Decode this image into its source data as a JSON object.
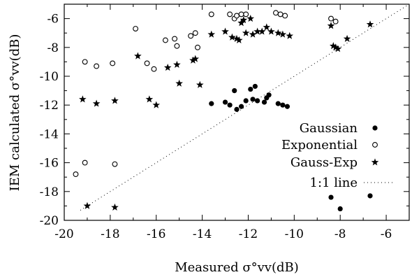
{
  "chart_data": {
    "type": "scatter",
    "title": "",
    "xlabel": "Measured σ°vv(dB)",
    "ylabel": "IEM calculated σ°vv(dB)",
    "xlim": [
      -20,
      -5
    ],
    "ylim": [
      -20,
      -5
    ],
    "xticks": [
      -20,
      -18,
      -16,
      -14,
      -12,
      -10,
      -8,
      -6
    ],
    "yticks": [
      -20,
      -18,
      -16,
      -14,
      -12,
      -10,
      -8,
      -6
    ],
    "grid": false,
    "legend_position": "lower-right",
    "series": [
      {
        "name": "Gaussian",
        "marker": "filled-circle",
        "points": [
          [
            -13.6,
            -11.9
          ],
          [
            -13.0,
            -11.8
          ],
          [
            -12.8,
            -12.0
          ],
          [
            -12.6,
            -11.0
          ],
          [
            -12.5,
            -12.3
          ],
          [
            -12.3,
            -12.1
          ],
          [
            -12.1,
            -11.7
          ],
          [
            -11.9,
            -10.9
          ],
          [
            -11.8,
            -11.6
          ],
          [
            -11.7,
            -10.7
          ],
          [
            -11.6,
            -11.7
          ],
          [
            -11.3,
            -11.8
          ],
          [
            -11.2,
            -11.5
          ],
          [
            -11.1,
            -11.3
          ],
          [
            -10.7,
            -11.9
          ],
          [
            -10.5,
            -12.0
          ],
          [
            -10.3,
            -12.1
          ],
          [
            -8.4,
            -18.4
          ],
          [
            -8.0,
            -19.2
          ],
          [
            -6.7,
            -18.3
          ]
        ]
      },
      {
        "name": "Exponential",
        "marker": "open-circle",
        "points": [
          [
            -19.5,
            -16.8
          ],
          [
            -19.1,
            -16.0
          ],
          [
            -19.1,
            -9.0
          ],
          [
            -18.6,
            -9.3
          ],
          [
            -17.9,
            -9.1
          ],
          [
            -17.8,
            -16.1
          ],
          [
            -16.9,
            -6.7
          ],
          [
            -16.4,
            -9.1
          ],
          [
            -16.1,
            -9.5
          ],
          [
            -15.6,
            -7.5
          ],
          [
            -15.2,
            -7.4
          ],
          [
            -15.1,
            -7.9
          ],
          [
            -14.5,
            -7.2
          ],
          [
            -14.3,
            -7.0
          ],
          [
            -14.2,
            -8.0
          ],
          [
            -13.6,
            -5.7
          ],
          [
            -12.8,
            -5.7
          ],
          [
            -12.6,
            -6.0
          ],
          [
            -12.5,
            -5.8
          ],
          [
            -12.3,
            -5.7
          ],
          [
            -12.1,
            -5.7
          ],
          [
            -10.8,
            -5.6
          ],
          [
            -10.6,
            -5.7
          ],
          [
            -10.4,
            -5.8
          ],
          [
            -8.4,
            -6.0
          ],
          [
            -8.2,
            -6.2
          ]
        ]
      },
      {
        "name": "Gauss-Exp",
        "marker": "star",
        "points": [
          [
            -19.2,
            -11.6
          ],
          [
            -19.0,
            -19.0
          ],
          [
            -18.6,
            -11.9
          ],
          [
            -17.8,
            -11.7
          ],
          [
            -17.8,
            -19.1
          ],
          [
            -16.8,
            -8.6
          ],
          [
            -16.3,
            -11.6
          ],
          [
            -16.0,
            -12.0
          ],
          [
            -15.5,
            -9.4
          ],
          [
            -15.1,
            -9.2
          ],
          [
            -15.0,
            -10.5
          ],
          [
            -14.4,
            -8.9
          ],
          [
            -14.3,
            -8.8
          ],
          [
            -14.1,
            -10.6
          ],
          [
            -13.6,
            -7.1
          ],
          [
            -13.0,
            -6.9
          ],
          [
            -12.7,
            -7.3
          ],
          [
            -12.5,
            -7.4
          ],
          [
            -12.4,
            -7.5
          ],
          [
            -12.3,
            -6.3
          ],
          [
            -12.1,
            -7.0
          ],
          [
            -11.8,
            -7.1
          ],
          [
            -11.6,
            -6.9
          ],
          [
            -11.4,
            -6.9
          ],
          [
            -11.2,
            -6.6
          ],
          [
            -11.0,
            -6.9
          ],
          [
            -10.7,
            -7.0
          ],
          [
            -10.5,
            -7.1
          ],
          [
            -10.2,
            -7.2
          ],
          [
            -8.4,
            -6.5
          ],
          [
            -8.3,
            -7.9
          ],
          [
            -8.2,
            -8.0
          ],
          [
            -8.1,
            -8.1
          ],
          [
            -7.7,
            -7.4
          ],
          [
            -6.7,
            -6.4
          ],
          [
            -12.2,
            -6.1
          ],
          [
            -11.9,
            -6.0
          ]
        ]
      },
      {
        "name": "1:1 line",
        "marker": "dotted-line",
        "points": [
          [
            -19.3,
            -19.3
          ],
          [
            -5.0,
            -5.0
          ]
        ]
      }
    ]
  }
}
